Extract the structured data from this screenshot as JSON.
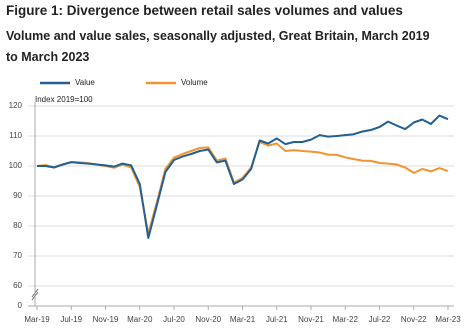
{
  "chart_data": {
    "type": "line",
    "title": "Figure 1: Divergence between retail sales volumes and values",
    "subtitle": "Volume and value sales, seasonally adjusted, Great Britain, March 2019 to March 2023",
    "annotation": "Index 2019=100",
    "categories": [
      "Mar-19",
      null,
      null,
      null,
      "Jul-19",
      null,
      null,
      null,
      "Nov-19",
      null,
      null,
      null,
      "Mar-20",
      null,
      null,
      null,
      "Jul-20",
      null,
      null,
      null,
      "Nov-20",
      null,
      null,
      null,
      "Mar-21",
      null,
      null,
      null,
      "Jul-21",
      null,
      null,
      null,
      "Nov-21",
      null,
      null,
      null,
      "Mar-22",
      null,
      null,
      null,
      "Jul-22",
      null,
      null,
      null,
      "Nov-22",
      null,
      null,
      null,
      "Mar-23"
    ],
    "series": [
      {
        "name": "Value",
        "color": "#206095",
        "values": [
          100,
          100,
          99.5,
          100.5,
          101.3,
          101,
          100.8,
          100.5,
          100.2,
          99.8,
          100.8,
          100.2,
          94,
          76,
          87,
          98,
          102,
          103.2,
          104,
          105,
          105.5,
          101.2,
          101.8,
          94,
          95.5,
          99,
          108.5,
          107.5,
          109.2,
          107.3,
          108,
          108,
          108.8,
          110.3,
          109.8,
          110,
          110.3,
          110.6,
          111.5,
          112,
          113,
          114.8,
          113.5,
          112.3,
          114.5,
          115.5,
          114,
          116.8,
          115.6
        ]
      },
      {
        "name": "Volume",
        "color": "#f39431",
        "values": [
          100,
          100.3,
          99.6,
          100.5,
          101.3,
          101.2,
          100.9,
          100.5,
          100,
          99.4,
          100.5,
          99.5,
          93,
          77.5,
          88,
          99,
          102.8,
          104,
          105,
          106,
          106.2,
          101.8,
          102.5,
          94.5,
          96,
          99.5,
          108,
          106.8,
          107.5,
          105,
          105.3,
          105,
          104.8,
          104.5,
          103.8,
          103.7,
          102.9,
          102.3,
          101.8,
          101.7,
          101,
          100.8,
          100.5,
          99.5,
          97.7,
          99,
          98.2,
          99.3,
          98.3
        ]
      }
    ],
    "ylim": [
      0,
      120
    ],
    "yticks": [
      0,
      60,
      70,
      80,
      90,
      100,
      110,
      120
    ],
    "y_break": [
      0,
      60
    ],
    "grid": true
  }
}
